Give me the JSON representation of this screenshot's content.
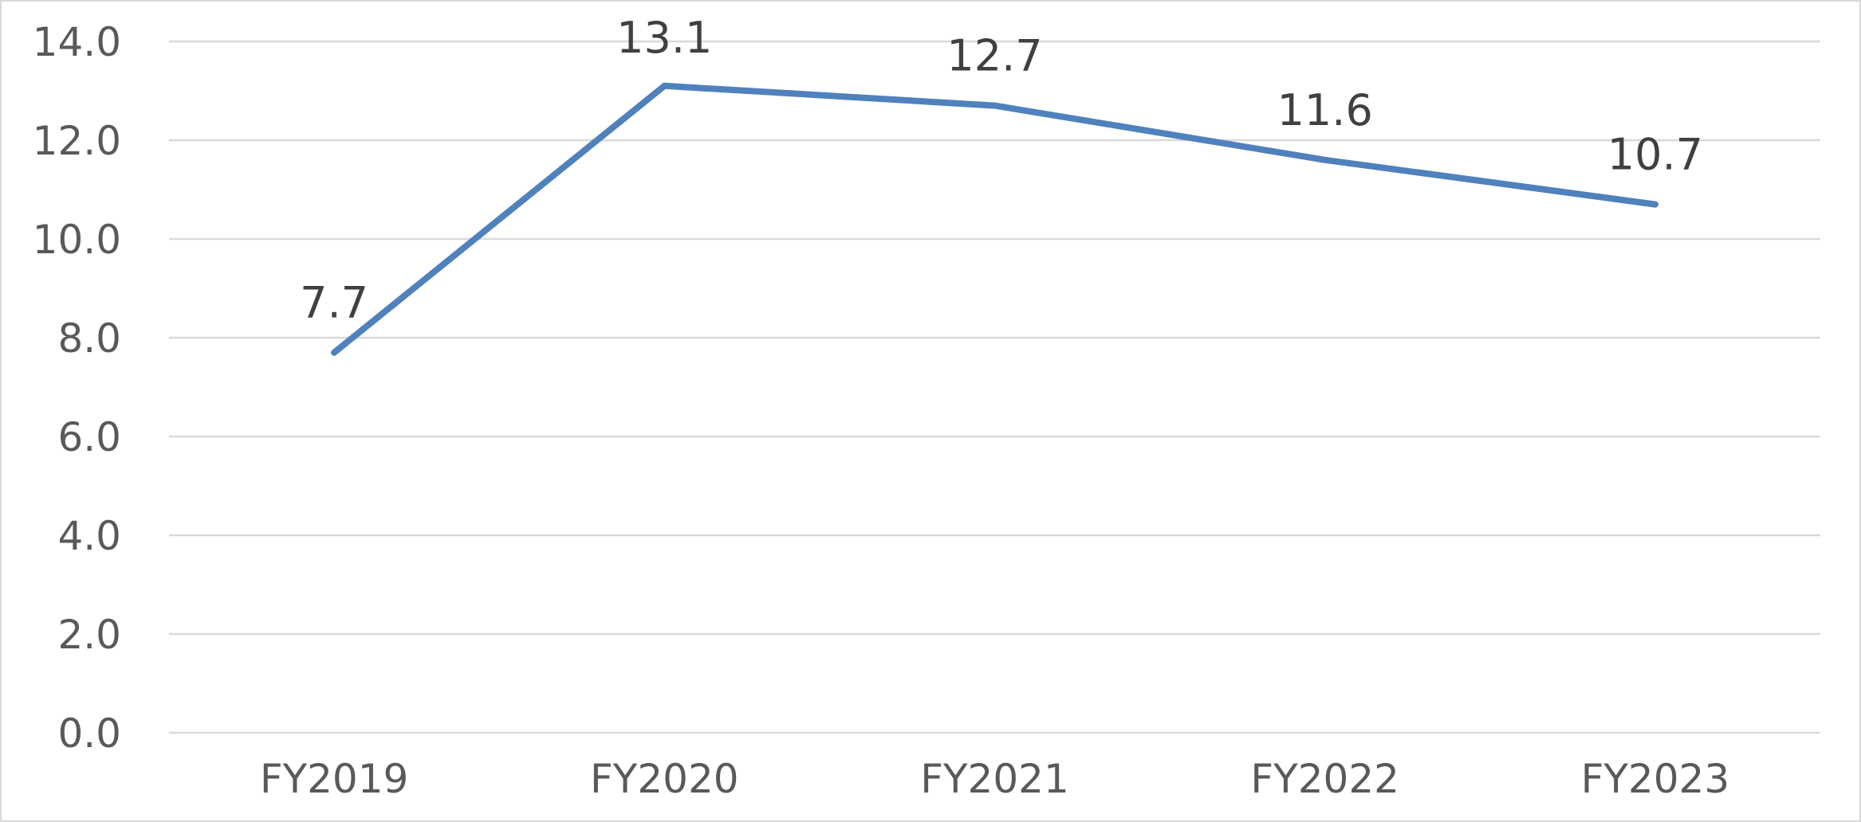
{
  "chart_data": {
    "type": "line",
    "categories": [
      "FY2019",
      "FY2020",
      "FY2021",
      "FY2022",
      "FY2023"
    ],
    "series": [
      {
        "values": [
          7.7,
          13.1,
          12.7,
          11.6,
          10.7
        ],
        "color": "#4f81bd"
      }
    ],
    "data_labels": [
      "7.7",
      "13.1",
      "12.7",
      "11.6",
      "10.7"
    ],
    "y_ticks": [
      "0.0",
      "2.0",
      "4.0",
      "6.0",
      "8.0",
      "10.0",
      "12.0",
      "14.0"
    ],
    "ylim": [
      0,
      14
    ],
    "grid": true,
    "legend": "none",
    "gridline_color": "#d9d9d9",
    "tick_label_color": "#595959",
    "data_label_color": "#404040"
  }
}
